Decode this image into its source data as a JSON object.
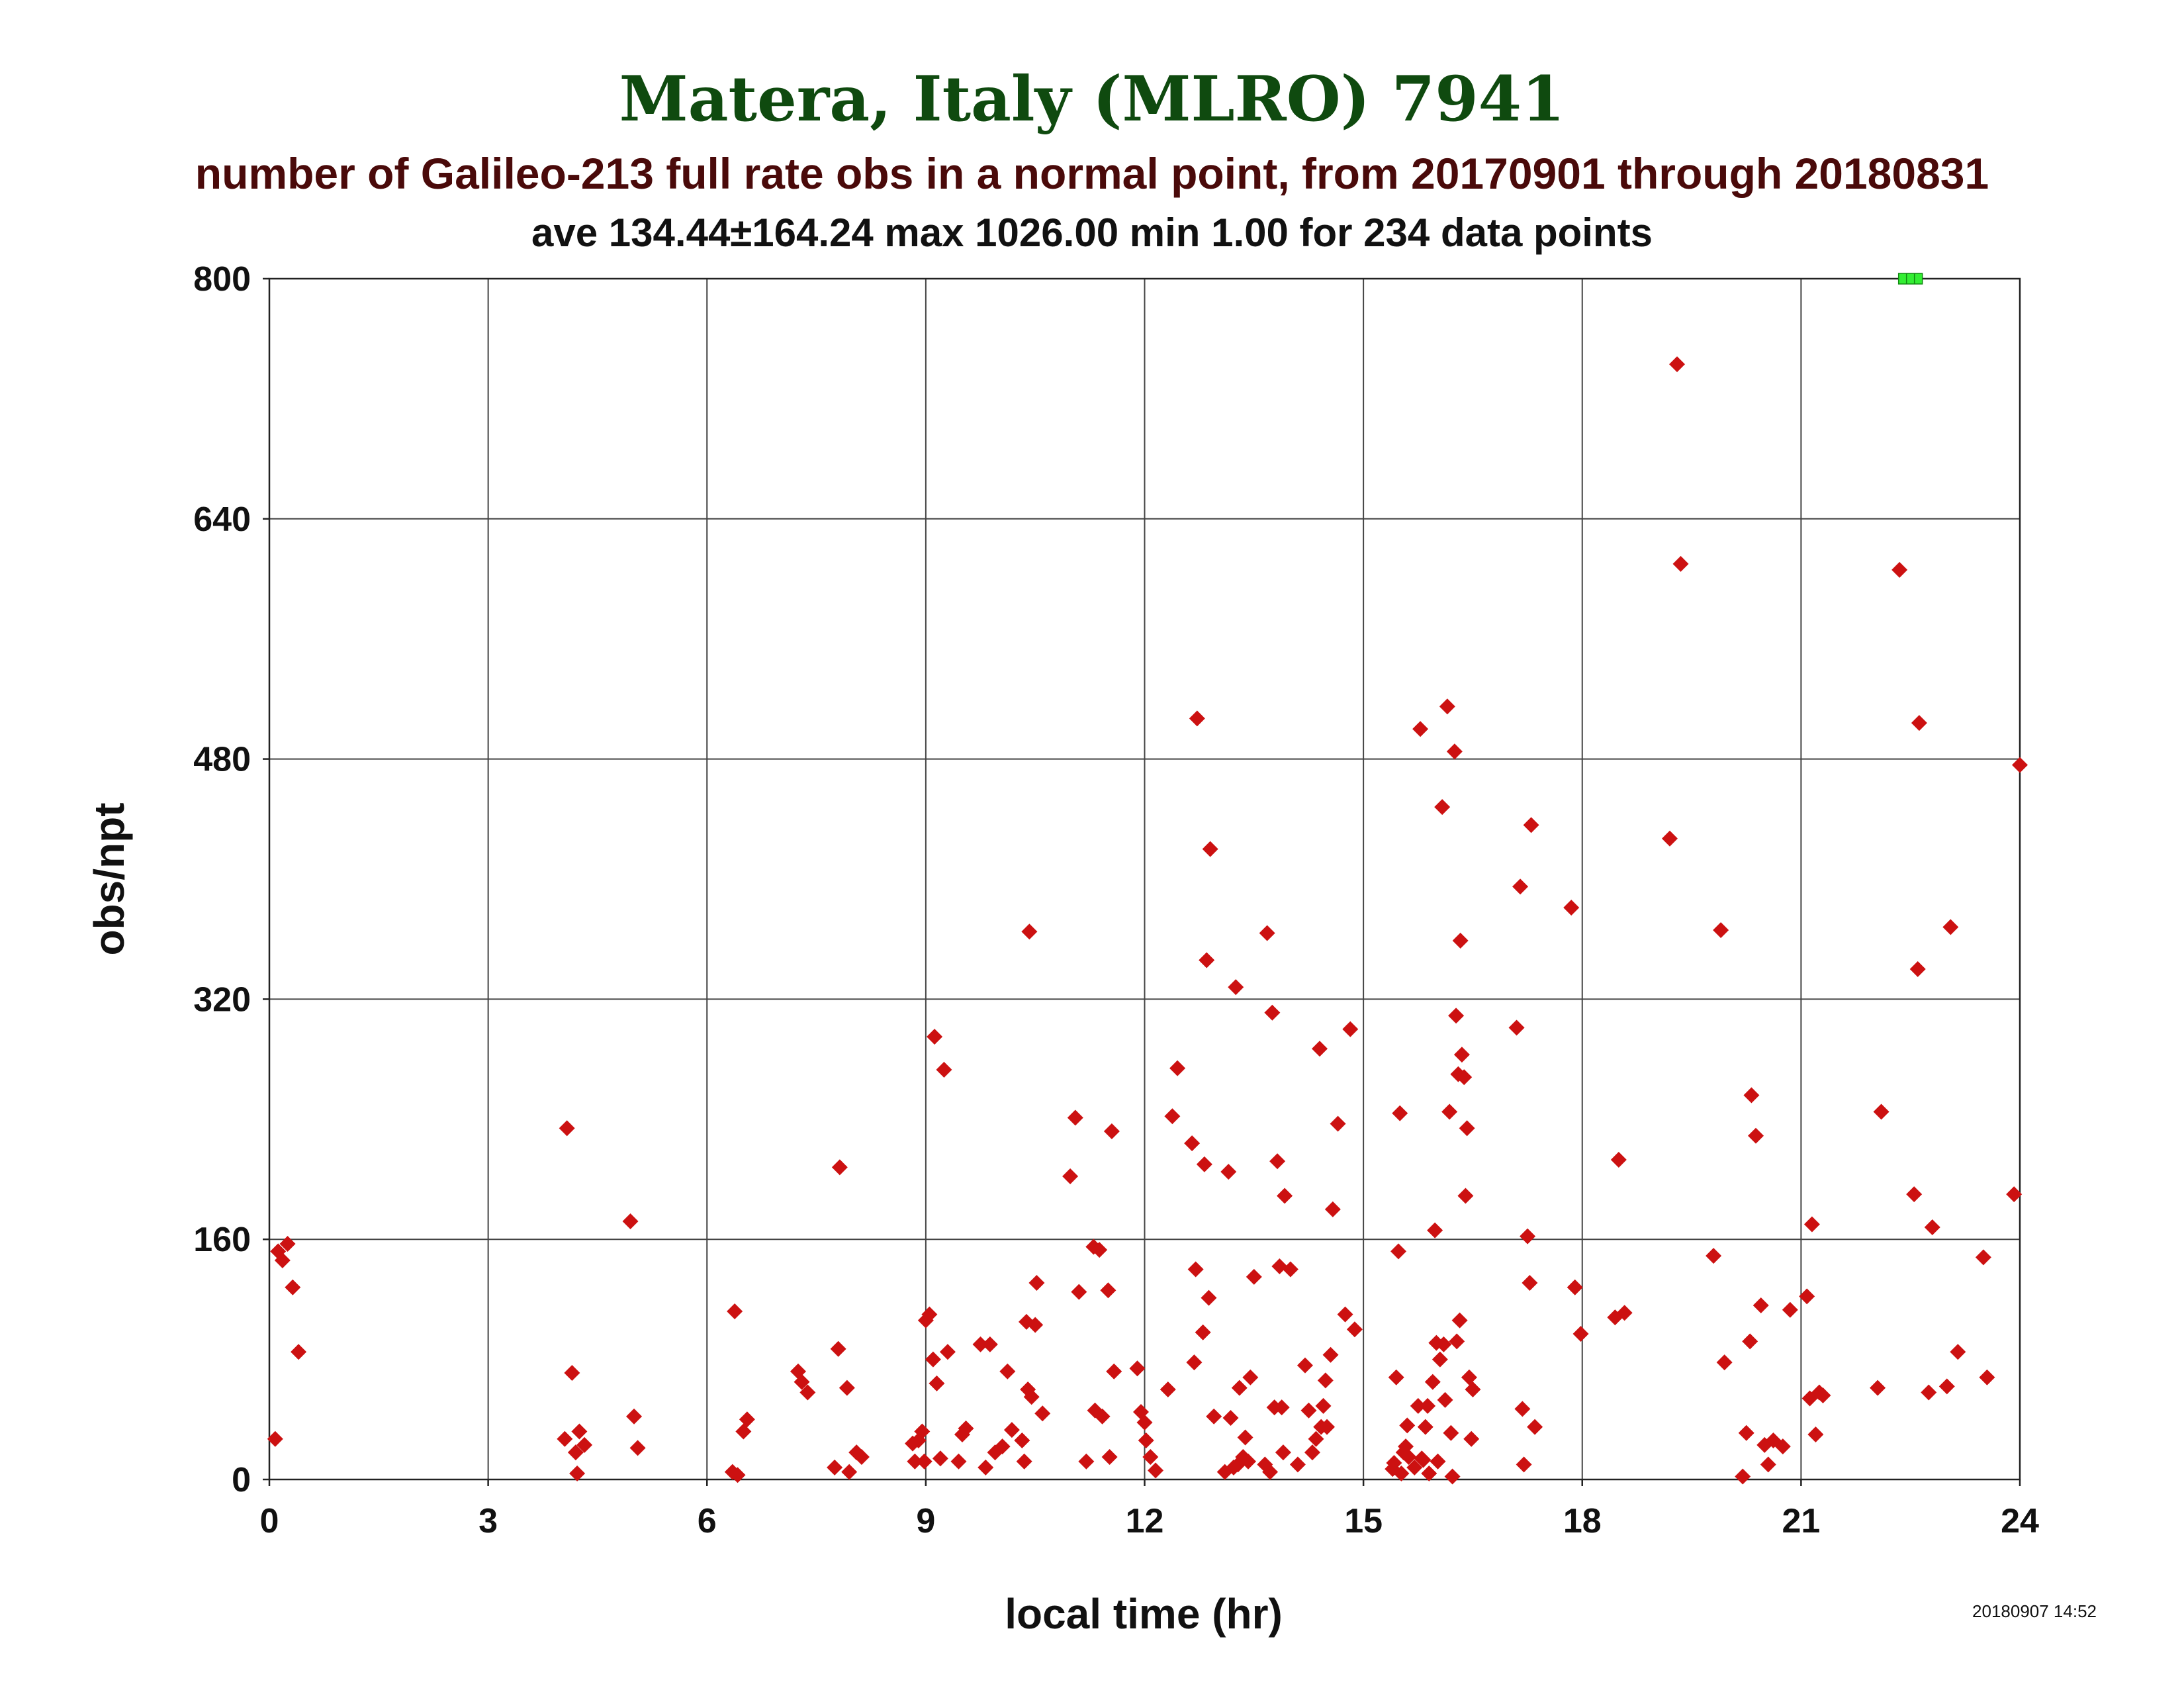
{
  "chart_data": {
    "type": "scatter",
    "title": "Matera, Italy (MLRO) 7941",
    "subtitle": "number of Galileo-213 full rate obs in a normal point, from 20170901 through 20180831",
    "stats_line": "ave 134.44±164.24 max 1026.00 min 1.00 for 234 data points",
    "xlabel": "local time (hr)",
    "ylabel": "obs/npt",
    "timestamp": "20180907 14:52",
    "xlim": [
      0,
      24
    ],
    "ylim": [
      0,
      800
    ],
    "x_ticks": [
      "0",
      "3",
      "6",
      "9",
      "12",
      "15",
      "18",
      "21",
      "24"
    ],
    "y_ticks": [
      "0",
      "160",
      "320",
      "480",
      "640",
      "800"
    ],
    "grid": true,
    "marker_color": "#cc1111",
    "overflow_marker_color": "#33ee33",
    "overflow_marker_x": 22.5,
    "points": [
      [
        0.08,
        27
      ],
      [
        0.12,
        152
      ],
      [
        0.18,
        146
      ],
      [
        0.25,
        157
      ],
      [
        0.32,
        128
      ],
      [
        0.4,
        85
      ],
      [
        4.05,
        27
      ],
      [
        4.08,
        234
      ],
      [
        4.15,
        71
      ],
      [
        4.2,
        18
      ],
      [
        4.25,
        32
      ],
      [
        4.22,
        4
      ],
      [
        4.32,
        23
      ],
      [
        4.95,
        172
      ],
      [
        5.0,
        42
      ],
      [
        5.05,
        21
      ],
      [
        6.35,
        5
      ],
      [
        6.38,
        112
      ],
      [
        6.42,
        3
      ],
      [
        6.5,
        32
      ],
      [
        6.55,
        40
      ],
      [
        7.25,
        72
      ],
      [
        7.3,
        65
      ],
      [
        7.38,
        58
      ],
      [
        7.75,
        8
      ],
      [
        7.8,
        87
      ],
      [
        7.82,
        208
      ],
      [
        7.92,
        61
      ],
      [
        7.95,
        5
      ],
      [
        8.05,
        18
      ],
      [
        8.12,
        15
      ],
      [
        8.82,
        24
      ],
      [
        8.85,
        12
      ],
      [
        8.9,
        26
      ],
      [
        8.95,
        32
      ],
      [
        8.98,
        12
      ],
      [
        9.0,
        106
      ],
      [
        9.05,
        110
      ],
      [
        9.1,
        80
      ],
      [
        9.12,
        295
      ],
      [
        9.15,
        64
      ],
      [
        9.25,
        273
      ],
      [
        9.2,
        14
      ],
      [
        9.3,
        85
      ],
      [
        9.45,
        12
      ],
      [
        9.5,
        30
      ],
      [
        9.55,
        34
      ],
      [
        9.75,
        90
      ],
      [
        9.82,
        8
      ],
      [
        9.88,
        90
      ],
      [
        9.95,
        18
      ],
      [
        10.05,
        22
      ],
      [
        10.12,
        72
      ],
      [
        10.18,
        33
      ],
      [
        10.32,
        26
      ],
      [
        10.35,
        12
      ],
      [
        10.38,
        105
      ],
      [
        10.4,
        60
      ],
      [
        10.42,
        365
      ],
      [
        10.45,
        55
      ],
      [
        10.5,
        103
      ],
      [
        10.52,
        131
      ],
      [
        10.6,
        44
      ],
      [
        10.98,
        202
      ],
      [
        11.05,
        241
      ],
      [
        11.1,
        125
      ],
      [
        11.2,
        12
      ],
      [
        11.3,
        155
      ],
      [
        11.32,
        46
      ],
      [
        11.38,
        153
      ],
      [
        11.42,
        42
      ],
      [
        11.5,
        126
      ],
      [
        11.52,
        15
      ],
      [
        11.55,
        232
      ],
      [
        11.58,
        72
      ],
      [
        11.9,
        74
      ],
      [
        11.95,
        45
      ],
      [
        12.0,
        38
      ],
      [
        12.02,
        26
      ],
      [
        12.08,
        15
      ],
      [
        12.15,
        6
      ],
      [
        12.32,
        60
      ],
      [
        12.38,
        242
      ],
      [
        12.45,
        274
      ],
      [
        12.65,
        224
      ],
      [
        12.68,
        78
      ],
      [
        12.7,
        140
      ],
      [
        12.72,
        507
      ],
      [
        12.8,
        98
      ],
      [
        12.82,
        210
      ],
      [
        12.85,
        346
      ],
      [
        12.88,
        121
      ],
      [
        12.9,
        420
      ],
      [
        12.95,
        42
      ],
      [
        13.1,
        5
      ],
      [
        13.15,
        205
      ],
      [
        13.18,
        41
      ],
      [
        13.22,
        8
      ],
      [
        13.25,
        328
      ],
      [
        13.28,
        10
      ],
      [
        13.3,
        61
      ],
      [
        13.35,
        15
      ],
      [
        13.38,
        28
      ],
      [
        13.42,
        12
      ],
      [
        13.45,
        68
      ],
      [
        13.5,
        135
      ],
      [
        13.65,
        10
      ],
      [
        13.68,
        364
      ],
      [
        13.72,
        5
      ],
      [
        13.75,
        311
      ],
      [
        13.78,
        48
      ],
      [
        13.82,
        212
      ],
      [
        13.85,
        142
      ],
      [
        13.88,
        48
      ],
      [
        13.9,
        18
      ],
      [
        13.92,
        189
      ],
      [
        14.0,
        140
      ],
      [
        14.1,
        10
      ],
      [
        14.2,
        76
      ],
      [
        14.25,
        46
      ],
      [
        14.3,
        18
      ],
      [
        14.35,
        27
      ],
      [
        14.4,
        287
      ],
      [
        14.42,
        35
      ],
      [
        14.45,
        49
      ],
      [
        14.48,
        66
      ],
      [
        14.5,
        35
      ],
      [
        14.55,
        83
      ],
      [
        14.58,
        180
      ],
      [
        14.65,
        237
      ],
      [
        14.75,
        110
      ],
      [
        14.82,
        300
      ],
      [
        14.88,
        100
      ],
      [
        15.4,
        7
      ],
      [
        15.42,
        11
      ],
      [
        15.45,
        68
      ],
      [
        15.48,
        152
      ],
      [
        15.5,
        244
      ],
      [
        15.52,
        4
      ],
      [
        15.55,
        18
      ],
      [
        15.58,
        22
      ],
      [
        15.6,
        36
      ],
      [
        15.62,
        15
      ],
      [
        15.7,
        8
      ],
      [
        15.75,
        49
      ],
      [
        15.78,
        500
      ],
      [
        15.8,
        14
      ],
      [
        15.82,
        13
      ],
      [
        15.85,
        35
      ],
      [
        15.88,
        49
      ],
      [
        15.9,
        4
      ],
      [
        15.95,
        65
      ],
      [
        15.98,
        166
      ],
      [
        16.0,
        91
      ],
      [
        16.02,
        12
      ],
      [
        16.05,
        80
      ],
      [
        16.08,
        448
      ],
      [
        16.1,
        90
      ],
      [
        16.12,
        53
      ],
      [
        16.15,
        515
      ],
      [
        16.18,
        245
      ],
      [
        16.2,
        31
      ],
      [
        16.22,
        2
      ],
      [
        16.25,
        485
      ],
      [
        16.27,
        309
      ],
      [
        16.28,
        92
      ],
      [
        16.3,
        270
      ],
      [
        16.32,
        106
      ],
      [
        16.33,
        359
      ],
      [
        16.35,
        283
      ],
      [
        16.38,
        268
      ],
      [
        16.4,
        189
      ],
      [
        16.42,
        234
      ],
      [
        16.45,
        68
      ],
      [
        16.48,
        27
      ],
      [
        16.5,
        60
      ],
      [
        17.1,
        301
      ],
      [
        17.15,
        395
      ],
      [
        17.18,
        47
      ],
      [
        17.2,
        10
      ],
      [
        17.25,
        162
      ],
      [
        17.28,
        131
      ],
      [
        17.3,
        436
      ],
      [
        17.35,
        35
      ],
      [
        17.85,
        381
      ],
      [
        17.9,
        128
      ],
      [
        17.98,
        97
      ],
      [
        18.45,
        108
      ],
      [
        18.5,
        213
      ],
      [
        18.58,
        111
      ],
      [
        19.2,
        427
      ],
      [
        19.3,
        743
      ],
      [
        19.35,
        610
      ],
      [
        19.8,
        149
      ],
      [
        19.9,
        366
      ],
      [
        19.95,
        78
      ],
      [
        20.2,
        2
      ],
      [
        20.25,
        31
      ],
      [
        20.3,
        92
      ],
      [
        20.32,
        256
      ],
      [
        20.38,
        229
      ],
      [
        20.45,
        116
      ],
      [
        20.5,
        23
      ],
      [
        20.55,
        10
      ],
      [
        20.62,
        26
      ],
      [
        20.75,
        22
      ],
      [
        20.85,
        113
      ],
      [
        21.08,
        122
      ],
      [
        21.12,
        54
      ],
      [
        21.15,
        170
      ],
      [
        21.2,
        30
      ],
      [
        21.25,
        58
      ],
      [
        21.3,
        56
      ],
      [
        22.05,
        61
      ],
      [
        22.1,
        245
      ],
      [
        22.35,
        606
      ],
      [
        22.55,
        190
      ],
      [
        22.6,
        340
      ],
      [
        22.62,
        504
      ],
      [
        22.75,
        58
      ],
      [
        22.8,
        168
      ],
      [
        23.0,
        62
      ],
      [
        23.05,
        368
      ],
      [
        23.15,
        85
      ],
      [
        23.5,
        148
      ],
      [
        23.55,
        68
      ],
      [
        23.92,
        190
      ],
      [
        24.0,
        476
      ]
    ]
  }
}
